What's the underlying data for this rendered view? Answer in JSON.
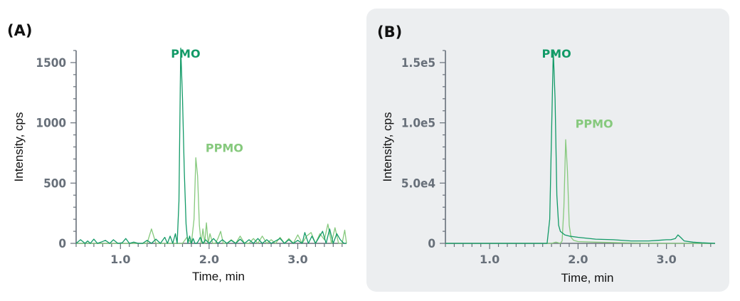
{
  "colors": {
    "pmo": "#129a67",
    "ppmo": "#86c97d",
    "axis": "#68707a",
    "panel_b_bg": "#eceef0"
  },
  "chart_data": [
    {
      "type": "line",
      "panel_label": "(A)",
      "xlabel": "Time, min",
      "ylabel": "Intensity, cps",
      "xlim": [
        0.5,
        3.55
      ],
      "ylim": [
        0,
        1600
      ],
      "x_ticks": [
        1.0,
        2.0,
        3.0
      ],
      "x_tick_labels": [
        "1.0",
        "2.0",
        "3.0"
      ],
      "y_ticks": [
        0,
        500,
        1000,
        1500
      ],
      "y_tick_labels": [
        "0",
        "500",
        "1000",
        "1500"
      ],
      "annotations": [
        {
          "text": "PMO",
          "series": "PMO",
          "x": 1.57,
          "y": 1540
        },
        {
          "text": "PPMO",
          "series": "PPMO",
          "x": 1.96,
          "y": 760
        }
      ],
      "series": [
        {
          "name": "PMO",
          "color": "#129a67",
          "x": [
            0.5,
            0.55,
            0.6,
            0.63,
            0.66,
            0.7,
            0.74,
            0.78,
            0.83,
            0.88,
            0.92,
            0.97,
            1.02,
            1.06,
            1.1,
            1.15,
            1.2,
            1.25,
            1.3,
            1.35,
            1.4,
            1.45,
            1.5,
            1.53,
            1.56,
            1.59,
            1.62,
            1.64,
            1.66,
            1.68,
            1.7,
            1.72,
            1.74,
            1.76,
            1.78,
            1.8,
            1.82,
            1.84,
            1.86,
            1.88,
            1.9,
            1.93,
            1.96,
            2.0,
            2.05,
            2.1,
            2.15,
            2.2,
            2.25,
            2.3,
            2.35,
            2.4,
            2.45,
            2.5,
            2.55,
            2.6,
            2.65,
            2.7,
            2.75,
            2.8,
            2.85,
            2.9,
            2.95,
            3.0,
            3.05,
            3.08,
            3.12,
            3.16,
            3.2,
            3.24,
            3.28,
            3.32,
            3.36,
            3.4,
            3.44,
            3.48,
            3.52,
            3.55
          ],
          "y": [
            0,
            30,
            0,
            20,
            0,
            35,
            0,
            10,
            25,
            0,
            30,
            0,
            5,
            40,
            0,
            10,
            0,
            0,
            25,
            0,
            35,
            0,
            50,
            0,
            60,
            0,
            80,
            0,
            350,
            1620,
            1200,
            600,
            160,
            0,
            60,
            0,
            40,
            0,
            0,
            20,
            50,
            0,
            30,
            0,
            40,
            0,
            30,
            0,
            25,
            0,
            35,
            0,
            30,
            0,
            40,
            0,
            30,
            0,
            20,
            40,
            0,
            30,
            0,
            25,
            0,
            90,
            0,
            60,
            0,
            50,
            100,
            0,
            120,
            0,
            80,
            30,
            0,
            0
          ]
        },
        {
          "name": "PPMO",
          "color": "#86c97d",
          "x": [
            0.5,
            0.6,
            0.7,
            0.8,
            0.9,
            1.0,
            1.1,
            1.2,
            1.3,
            1.35,
            1.4,
            1.5,
            1.6,
            1.7,
            1.75,
            1.8,
            1.83,
            1.85,
            1.87,
            1.89,
            1.91,
            1.93,
            1.95,
            1.97,
            1.99,
            2.01,
            2.04,
            2.07,
            2.1,
            2.13,
            2.16,
            2.2,
            2.25,
            2.3,
            2.35,
            2.4,
            2.45,
            2.5,
            2.55,
            2.6,
            2.65,
            2.7,
            2.75,
            2.8,
            2.85,
            2.9,
            2.95,
            3.0,
            3.05,
            3.1,
            3.15,
            3.2,
            3.25,
            3.3,
            3.34,
            3.38,
            3.42,
            3.46,
            3.5,
            3.53,
            3.55
          ],
          "y": [
            0,
            0,
            0,
            0,
            0,
            0,
            0,
            0,
            0,
            120,
            0,
            0,
            0,
            0,
            50,
            0,
            200,
            710,
            560,
            150,
            0,
            120,
            0,
            170,
            0,
            80,
            0,
            0,
            40,
            100,
            0,
            0,
            30,
            0,
            60,
            0,
            0,
            40,
            0,
            60,
            0,
            30,
            0,
            50,
            0,
            40,
            0,
            70,
            0,
            60,
            90,
            0,
            80,
            30,
            160,
            0,
            130,
            0,
            0,
            110,
            0
          ]
        }
      ]
    },
    {
      "type": "line",
      "panel_label": "(B)",
      "xlabel": "Time, min",
      "ylabel": "Intensity, cps",
      "xlim": [
        0.5,
        3.55
      ],
      "ylim": [
        0,
        160000
      ],
      "x_ticks": [
        1.0,
        2.0,
        3.0
      ],
      "x_tick_labels": [
        "1.0",
        "2.0",
        "3.0"
      ],
      "y_ticks": [
        0,
        50000,
        100000,
        150000
      ],
      "y_tick_labels": [
        "0",
        "5.0e4",
        "1.0e5",
        "1.5e5"
      ],
      "annotations": [
        {
          "text": "PMO",
          "series": "PMO",
          "x": 1.59,
          "y": 154000
        },
        {
          "text": "PPMO",
          "series": "PPMO",
          "x": 1.97,
          "y": 96000
        }
      ],
      "series": [
        {
          "name": "PMO",
          "color": "#129a67",
          "x": [
            0.5,
            1.0,
            1.5,
            1.65,
            1.68,
            1.7,
            1.72,
            1.74,
            1.76,
            1.78,
            1.8,
            1.85,
            1.9,
            2.0,
            2.2,
            2.4,
            2.6,
            2.8,
            2.9,
            3.0,
            3.05,
            3.1,
            3.13,
            3.16,
            3.2,
            3.3,
            3.4,
            3.55
          ],
          "y": [
            0,
            0,
            0,
            0,
            20000,
            90000,
            160000,
            120000,
            40000,
            15000,
            10000,
            7000,
            6000,
            5000,
            3500,
            3000,
            2000,
            2000,
            2500,
            3000,
            3000,
            4000,
            7000,
            5000,
            2000,
            1000,
            500,
            0
          ]
        },
        {
          "name": "PPMO",
          "color": "#86c97d",
          "x": [
            0.5,
            1.0,
            1.5,
            1.7,
            1.75,
            1.8,
            1.82,
            1.84,
            1.86,
            1.88,
            1.9,
            1.92,
            1.95,
            2.0,
            2.2,
            2.5,
            3.0,
            3.55
          ],
          "y": [
            0,
            0,
            0,
            0,
            1000,
            0,
            2000,
            30000,
            86000,
            60000,
            15000,
            5000,
            2500,
            1500,
            1000,
            500,
            0,
            0
          ]
        }
      ]
    }
  ]
}
